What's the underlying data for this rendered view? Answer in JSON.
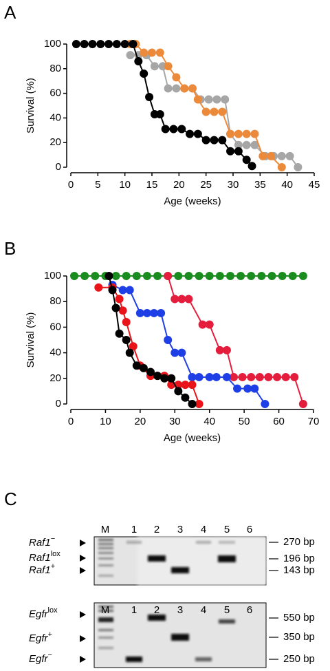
{
  "panels": [
    "A",
    "B",
    "C"
  ],
  "chart_data": [
    {
      "type": "line",
      "ylabel": "Survival (%)",
      "xlabel": "Age (weeks)",
      "xlim": [
        0,
        45
      ],
      "xticks": [
        0,
        5,
        10,
        15,
        20,
        25,
        30,
        35,
        40,
        45
      ],
      "ylim": [
        0,
        100
      ],
      "yticks": [
        0,
        20,
        40,
        60,
        80,
        100
      ],
      "series": [
        {
          "color": "#a6a6a6",
          "x": [
            11,
            12.5,
            14,
            15.5,
            17,
            18,
            19.5,
            21,
            22.5,
            24,
            25.5,
            27,
            28.5,
            29.5,
            31,
            32.5,
            34,
            36,
            37.5,
            39,
            40.5,
            42
          ],
          "values": [
            91,
            91,
            91,
            82,
            82,
            64,
            64,
            64,
            64,
            55,
            55,
            55,
            55,
            27,
            18,
            18,
            18,
            9,
            9,
            9,
            9,
            0
          ]
        },
        {
          "color": "#ec8a3c",
          "x": [
            11,
            12,
            13.5,
            15,
            16.5,
            18,
            19.5,
            21,
            22.5,
            23.5,
            25,
            26.5,
            28,
            29.5,
            31,
            32.5,
            34,
            35.5,
            37,
            39
          ],
          "values": [
            100,
            100,
            93,
            93,
            93,
            82,
            73,
            64,
            64,
            55,
            45,
            45,
            45,
            27,
            27,
            27,
            27,
            9,
            9,
            0
          ]
        },
        {
          "color": "#000000",
          "x": [
            1,
            2.5,
            4,
            5.5,
            7,
            8.5,
            10,
            11.5,
            12.5,
            13.5,
            14.5,
            15.5,
            16.5,
            17.5,
            19,
            20.5,
            22,
            23.5,
            25,
            26.5,
            28,
            29.5,
            31,
            32.5,
            33.5
          ],
          "values": [
            100,
            100,
            100,
            100,
            100,
            100,
            100,
            100,
            86,
            76,
            57,
            43,
            43,
            31,
            31,
            31,
            27,
            27,
            22,
            22,
            22,
            13,
            13,
            6,
            1
          ]
        }
      ]
    },
    {
      "type": "line",
      "ylabel": "Survival (%)",
      "xlabel": "Age (weeks)",
      "xlim": [
        0,
        70
      ],
      "xticks": [
        0,
        10,
        20,
        30,
        40,
        50,
        60,
        70
      ],
      "ylim": [
        0,
        100
      ],
      "yticks": [
        0,
        20,
        40,
        60,
        80,
        100
      ],
      "series": [
        {
          "color": "#1a8c1f",
          "x": [
            1,
            4,
            7,
            10,
            13,
            16,
            19,
            22,
            25,
            28,
            31,
            34,
            37,
            40,
            43,
            46,
            49,
            52,
            55,
            58,
            61,
            64,
            67
          ],
          "values": [
            100,
            100,
            100,
            100,
            100,
            100,
            100,
            100,
            100,
            100,
            100,
            100,
            100,
            100,
            100,
            100,
            100,
            100,
            100,
            100,
            100,
            100,
            100
          ]
        },
        {
          "color": "#e51d3d",
          "x": [
            28,
            30,
            32,
            34,
            38,
            40,
            43,
            45,
            47,
            49.5,
            52,
            54.5,
            57,
            59.5,
            62,
            64.5,
            67
          ],
          "values": [
            100,
            82,
            82,
            82,
            62,
            62,
            42,
            42,
            21,
            21,
            21,
            21,
            21,
            21,
            21,
            21,
            0
          ]
        },
        {
          "color": "#1e3fe6",
          "x": [
            12,
            15,
            17,
            20,
            22,
            24,
            26,
            28,
            30,
            32,
            35,
            37,
            40,
            42,
            45,
            48,
            51,
            53,
            56
          ],
          "values": [
            93,
            89,
            89,
            71,
            71,
            71,
            71,
            50,
            40,
            40,
            21,
            21,
            21,
            21,
            21,
            12,
            12,
            12,
            0
          ]
        },
        {
          "color": "#e8141a",
          "x": [
            8,
            12,
            14,
            15,
            16,
            18,
            20,
            23,
            25,
            27,
            29,
            31,
            33,
            35,
            37
          ],
          "values": [
            91,
            91,
            82,
            73,
            64,
            45,
            30,
            22,
            22,
            22,
            15,
            15,
            15,
            15,
            0
          ]
        },
        {
          "color": "#000000",
          "x": [
            11,
            12,
            13,
            14,
            16,
            17,
            19,
            21,
            23,
            25,
            27,
            29,
            31,
            33,
            35
          ],
          "values": [
            100,
            89,
            75,
            55,
            50,
            40,
            30,
            28,
            25,
            22,
            20,
            20,
            10,
            5,
            0
          ]
        }
      ]
    }
  ],
  "gels": [
    {
      "lanes": [
        "M",
        "1",
        "2",
        "3",
        "4",
        "5",
        "6"
      ],
      "bands": [
        {
          "gene": "Raf1",
          "allele": "−",
          "size": "270 bp"
        },
        {
          "gene": "Raf1",
          "allele": "lox",
          "size": "196 bp"
        },
        {
          "gene": "Raf1",
          "allele": "+",
          "size": "143 bp"
        }
      ]
    },
    {
      "lanes": [
        "M",
        "1",
        "2",
        "3",
        "4",
        "5",
        "6"
      ],
      "bands": [
        {
          "gene": "Egfr",
          "allele": "lox",
          "size": "550 bp"
        },
        {
          "gene": "Egfr",
          "allele": "+",
          "size": "350 bp"
        },
        {
          "gene": "Egfr",
          "allele": "−",
          "size": "250 bp"
        }
      ]
    }
  ]
}
